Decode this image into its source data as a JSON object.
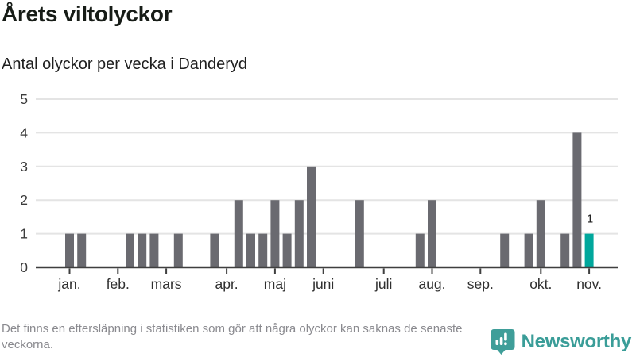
{
  "header": {
    "title": "Årets viltolyckor",
    "subtitle": "Antal olyckor per vecka i Danderyd"
  },
  "chart_data": {
    "type": "bar",
    "title": "Årets viltolyckor",
    "subtitle": "Antal olyckor per vecka i Danderyd",
    "ylabel": "",
    "xlabel": "",
    "ylim": [
      0,
      5
    ],
    "y_ticks": [
      0,
      1,
      2,
      3,
      4,
      5
    ],
    "grid": true,
    "legend": false,
    "values_per_week": [
      1,
      1,
      0,
      0,
      0,
      1,
      1,
      1,
      0,
      1,
      0,
      0,
      1,
      0,
      2,
      1,
      1,
      2,
      1,
      2,
      3,
      0,
      0,
      0,
      2,
      0,
      0,
      0,
      0,
      1,
      2,
      0,
      0,
      0,
      0,
      0,
      1,
      0,
      1,
      2,
      0,
      1,
      4,
      1
    ],
    "highlight_week": 44,
    "highlight_value_label": "1",
    "month_ticks": [
      {
        "label": "jan.",
        "week": 1
      },
      {
        "label": "feb.",
        "week": 5
      },
      {
        "label": "mars",
        "week": 9
      },
      {
        "label": "apr.",
        "week": 14
      },
      {
        "label": "maj",
        "week": 18
      },
      {
        "label": "juni",
        "week": 22
      },
      {
        "label": "juli",
        "week": 27
      },
      {
        "label": "aug.",
        "week": 31
      },
      {
        "label": "sep.",
        "week": 35
      },
      {
        "label": "okt.",
        "week": 40
      },
      {
        "label": "nov.",
        "week": 44
      }
    ],
    "colors": {
      "bar": "#6a6a70",
      "highlight": "#00a79c",
      "grid": "#e4e4e4",
      "axis": "#3f3f3f",
      "tick_label": "#2f2f2f",
      "y_label": "#3b3b3b",
      "annotation": "#1f1f1f"
    }
  },
  "footer": {
    "note": "Det finns en eftersläpning i statistiken som gör att några olyckor kan saknas de senaste veckorna.",
    "brand": "Newsworthy",
    "brand_color": "#3a9d98"
  }
}
